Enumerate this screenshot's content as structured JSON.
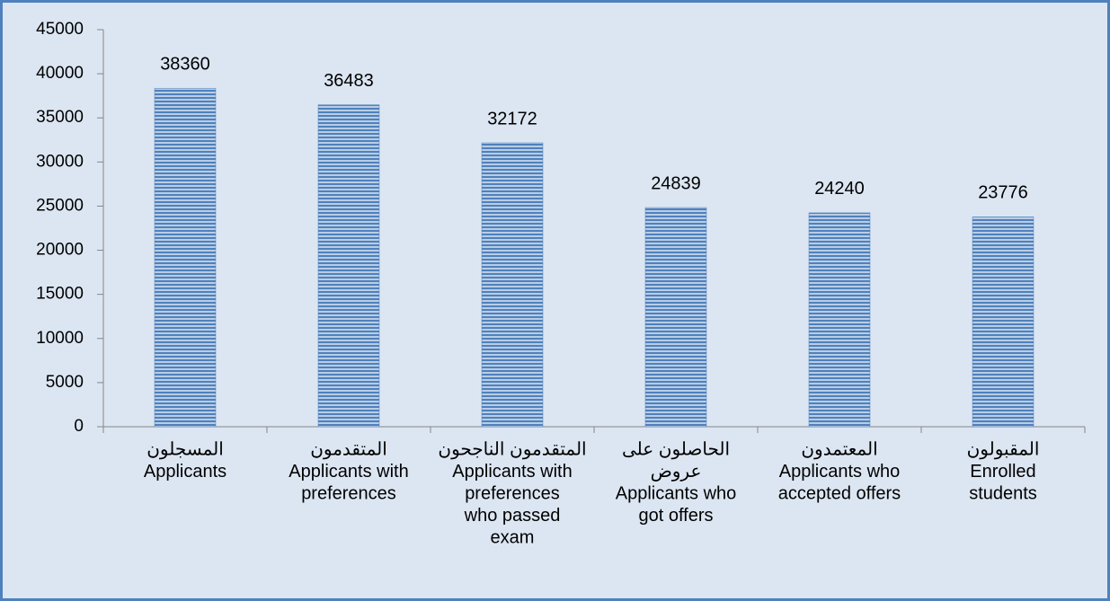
{
  "chart_data": {
    "type": "bar",
    "categories": [
      [
        "المسجلون",
        "Applicants"
      ],
      [
        "المتقدمون",
        "Applicants with",
        "preferences"
      ],
      [
        "المتقدمون الناجحون",
        "Applicants with",
        "preferences",
        "who passed",
        "exam"
      ],
      [
        "الحاصلون على",
        "عروض",
        "Applicants who",
        "got offers"
      ],
      [
        "المعتمدون",
        "Applicants who",
        "accepted offers"
      ],
      [
        "المقبولون",
        "Enrolled",
        "students"
      ]
    ],
    "values": [
      38360,
      36483,
      32172,
      24839,
      24240,
      23776
    ],
    "color": "#4f81bd",
    "ylim": [
      0,
      45000
    ],
    "yticks": [
      0,
      5000,
      10000,
      15000,
      20000,
      25000,
      30000,
      35000,
      40000,
      45000
    ],
    "grid": false
  }
}
